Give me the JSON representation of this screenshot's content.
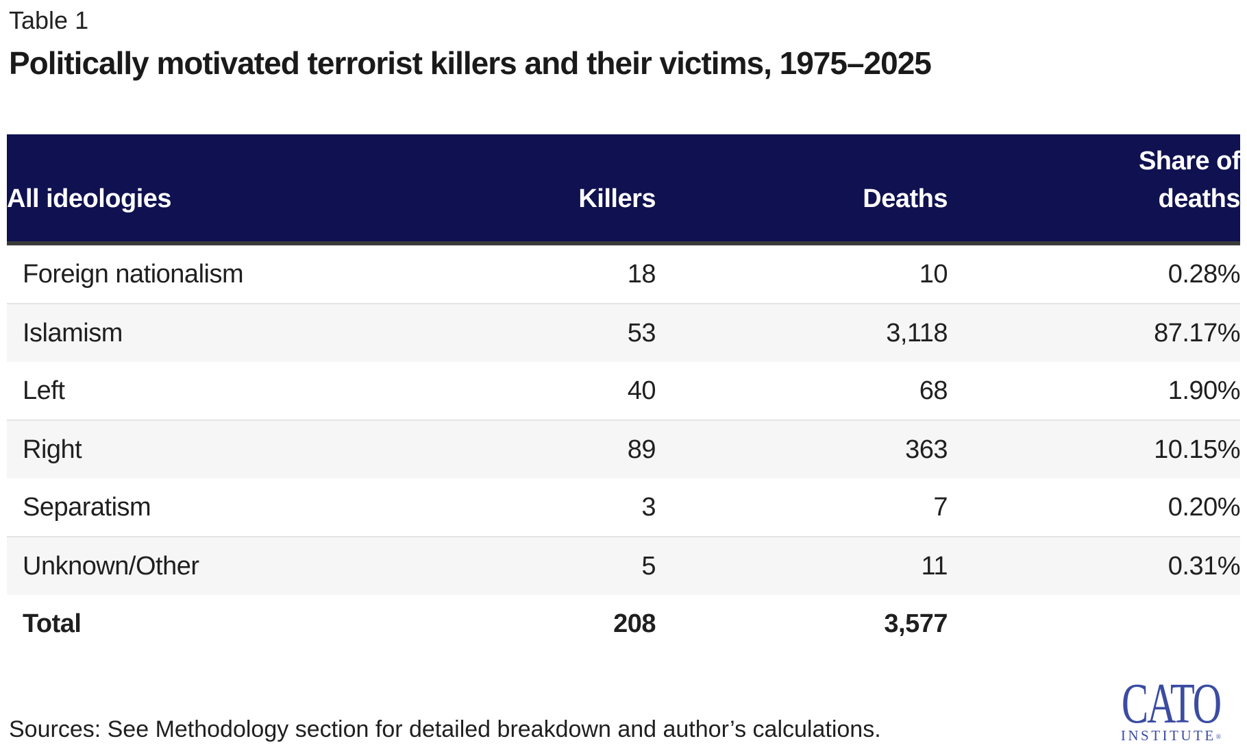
{
  "page": {
    "table_label": "Table 1",
    "title": "Politically motivated terrorist killers and their victims, 1975–2025",
    "source_note": "Sources: See Methodology section for detailed breakdown and author’s calculations."
  },
  "table": {
    "columns": [
      "All ideologies",
      "Killers",
      "Deaths",
      "Share of deaths"
    ],
    "rows": [
      {
        "ideology": "Foreign nationalism",
        "killers": "18",
        "deaths": "10",
        "share": "0.28%"
      },
      {
        "ideology": "Islamism",
        "killers": "53",
        "deaths": "3,118",
        "share": "87.17%"
      },
      {
        "ideology": "Left",
        "killers": "40",
        "deaths": "68",
        "share": "1.90%"
      },
      {
        "ideology": "Right",
        "killers": "89",
        "deaths": "363",
        "share": "10.15%"
      },
      {
        "ideology": "Separatism",
        "killers": "3",
        "deaths": "7",
        "share": "0.20%"
      },
      {
        "ideology": "Unknown/Other",
        "killers": "5",
        "deaths": "11",
        "share": "0.31%"
      }
    ],
    "total": {
      "label": "Total",
      "killers": "208",
      "deaths": "3,577",
      "share": ""
    }
  },
  "logo": {
    "line1": "CATO",
    "line2": "INSTITUTE",
    "registered": "®"
  },
  "colors": {
    "header_bg": "#101150",
    "header_border": "#3b3b3b",
    "alt_row_bg": "#f6f6f6",
    "row_border": "#e4e4e4",
    "text": "#1f1f1f",
    "logo_blue": "#3b4ca1"
  },
  "chart_data": {
    "type": "table",
    "label": "Table 1",
    "title": "Politically motivated terrorist killers and their victims, 1975–2025",
    "columns": [
      "All ideologies",
      "Killers",
      "Deaths",
      "Share of deaths"
    ],
    "rows": [
      [
        "Foreign nationalism",
        18,
        10,
        "0.28%"
      ],
      [
        "Islamism",
        53,
        3118,
        "87.17%"
      ],
      [
        "Left",
        40,
        68,
        "1.90%"
      ],
      [
        "Right",
        89,
        363,
        "10.15%"
      ],
      [
        "Separatism",
        3,
        7,
        "0.20%"
      ],
      [
        "Unknown/Other",
        5,
        11,
        "0.31%"
      ]
    ],
    "total_row": [
      "Total",
      208,
      3577,
      null
    ],
    "source_note": "Sources: See Methodology section for detailed breakdown and author’s calculations."
  }
}
